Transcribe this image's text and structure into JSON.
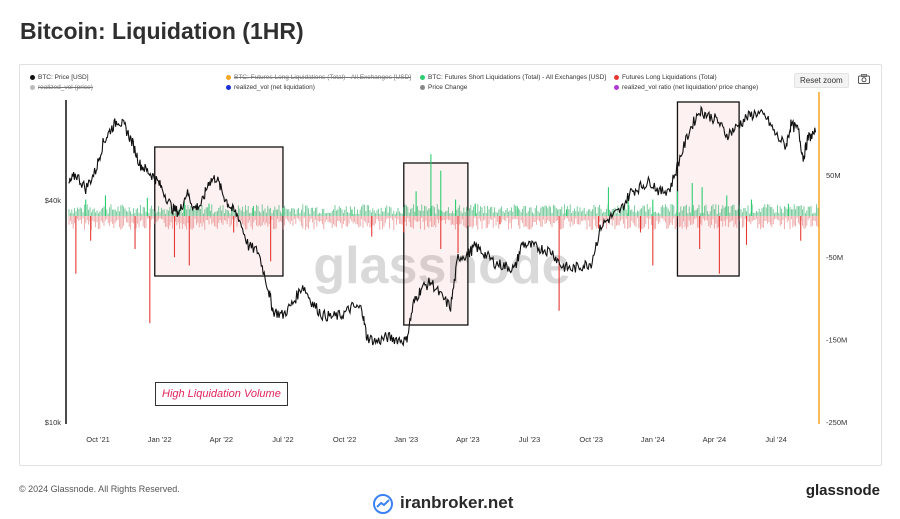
{
  "title": "Bitcoin: Liquidation (1HR)",
  "legend": [
    {
      "label": "BTC: Price [USD]",
      "color": "#111111",
      "strike": false
    },
    {
      "label": "BTC: Futures Long Liquidations (Total) - All Exchanges [USD]",
      "color": "#f5a623",
      "strike": true
    },
    {
      "label": "BTC: Futures Short Liquidations (Total) - All Exchanges [USD]",
      "color": "#2ecc71",
      "strike": false
    },
    {
      "label": "Futures Long Liquidations (Total)",
      "color": "#e53935",
      "strike": false
    },
    {
      "label": "realized_vol (price)",
      "color": "#999999",
      "strike": true
    },
    {
      "label": "realized_vol (net liquidation)",
      "color": "#1a2fd6",
      "strike": false
    },
    {
      "label": "Price Change",
      "color": "#888888",
      "strike": false
    },
    {
      "label": "realized_vol ratio (net liquidation/ price change)",
      "color": "#b03ad6",
      "strike": false
    }
  ],
  "reset_zoom": "Reset zoom",
  "annotation": "High Liquidation Volume",
  "watermark": "glassnode",
  "footer": {
    "copyright": "© 2024 Glassnode. All Rights Reserved.",
    "brand": "glassnode",
    "broker": "iranbroker.net"
  },
  "chart_data": {
    "type": "line",
    "left_axis": {
      "scale": "log",
      "ticks": [
        "$10k",
        "$40k"
      ]
    },
    "right_axis": {
      "ticks": [
        "50M",
        "-50M",
        "-150M",
        "-250M"
      ],
      "range": [
        -250,
        100
      ],
      "unit": "M"
    },
    "x_ticks": [
      "Oct '21",
      "Jan '22",
      "Apr '22",
      "Jul '22",
      "Oct '22",
      "Jan '23",
      "Apr '23",
      "Jul '23",
      "Oct '23",
      "Jan '24",
      "Apr '24",
      "Jul '24"
    ],
    "x_range": [
      2021.62,
      2024.67
    ],
    "price_series": {
      "name": "BTC: Price [USD]",
      "points": [
        [
          2021.63,
          44000
        ],
        [
          2021.66,
          47000
        ],
        [
          2021.7,
          43000
        ],
        [
          2021.74,
          48000
        ],
        [
          2021.77,
          57000
        ],
        [
          2021.8,
          62000
        ],
        [
          2021.83,
          66000
        ],
        [
          2021.86,
          63000
        ],
        [
          2021.89,
          57000
        ],
        [
          2021.92,
          50000
        ],
        [
          2021.95,
          48000
        ],
        [
          2021.98,
          46000
        ],
        [
          2022.01,
          43000
        ],
        [
          2022.05,
          38000
        ],
        [
          2022.08,
          37000
        ],
        [
          2022.11,
          42000
        ],
        [
          2022.14,
          38000
        ],
        [
          2022.17,
          39000
        ],
        [
          2022.2,
          45000
        ],
        [
          2022.23,
          46000
        ],
        [
          2022.26,
          41000
        ],
        [
          2022.29,
          38000
        ],
        [
          2022.32,
          36000
        ],
        [
          2022.36,
          30000
        ],
        [
          2022.4,
          29000
        ],
        [
          2022.44,
          23000
        ],
        [
          2022.46,
          20000
        ],
        [
          2022.5,
          19500
        ],
        [
          2022.54,
          21000
        ],
        [
          2022.58,
          23500
        ],
        [
          2022.62,
          21000
        ],
        [
          2022.66,
          19500
        ],
        [
          2022.7,
          19300
        ],
        [
          2022.74,
          19500
        ],
        [
          2022.78,
          20500
        ],
        [
          2022.82,
          20300
        ],
        [
          2022.84,
          17000
        ],
        [
          2022.88,
          16500
        ],
        [
          2022.92,
          17000
        ],
        [
          2022.96,
          16800
        ],
        [
          2023.0,
          16600
        ],
        [
          2023.03,
          21000
        ],
        [
          2023.06,
          23000
        ],
        [
          2023.1,
          24000
        ],
        [
          2023.14,
          22000
        ],
        [
          2023.18,
          20500
        ],
        [
          2023.21,
          28000
        ],
        [
          2023.25,
          28500
        ],
        [
          2023.28,
          30000
        ],
        [
          2023.32,
          28500
        ],
        [
          2023.36,
          27000
        ],
        [
          2023.4,
          26500
        ],
        [
          2023.44,
          26000
        ],
        [
          2023.47,
          30500
        ],
        [
          2023.51,
          30000
        ],
        [
          2023.55,
          29500
        ],
        [
          2023.59,
          29000
        ],
        [
          2023.63,
          26500
        ],
        [
          2023.67,
          26000
        ],
        [
          2023.71,
          26500
        ],
        [
          2023.75,
          27000
        ],
        [
          2023.79,
          34000
        ],
        [
          2023.83,
          36000
        ],
        [
          2023.87,
          37500
        ],
        [
          2023.91,
          42000
        ],
        [
          2023.95,
          43500
        ],
        [
          2023.99,
          45000
        ],
        [
          2024.03,
          42000
        ],
        [
          2024.07,
          43000
        ],
        [
          2024.11,
          52000
        ],
        [
          2024.15,
          62000
        ],
        [
          2024.19,
          70000
        ],
        [
          2024.22,
          68000
        ],
        [
          2024.26,
          66000
        ],
        [
          2024.3,
          60000
        ],
        [
          2024.34,
          63000
        ],
        [
          2024.38,
          67000
        ],
        [
          2024.42,
          69000
        ],
        [
          2024.46,
          67000
        ],
        [
          2024.5,
          60000
        ],
        [
          2024.54,
          56000
        ],
        [
          2024.56,
          64000
        ],
        [
          2024.59,
          62000
        ],
        [
          2024.61,
          52000
        ],
        [
          2024.63,
          59000
        ],
        [
          2024.66,
          61000
        ]
      ]
    },
    "liquidation_spikes": {
      "short_positive_M": [
        [
          2021.7,
          20
        ],
        [
          2021.78,
          25
        ],
        [
          2021.95,
          22
        ],
        [
          2022.1,
          18
        ],
        [
          2022.2,
          15
        ],
        [
          2022.38,
          12
        ],
        [
          2022.5,
          10
        ],
        [
          2022.78,
          8
        ],
        [
          2023.04,
          30
        ],
        [
          2023.1,
          75
        ],
        [
          2023.14,
          55
        ],
        [
          2023.2,
          20
        ],
        [
          2023.28,
          15
        ],
        [
          2023.45,
          12
        ],
        [
          2023.65,
          8
        ],
        [
          2023.82,
          35
        ],
        [
          2023.9,
          25
        ],
        [
          2024.0,
          20
        ],
        [
          2024.1,
          30
        ],
        [
          2024.16,
          40
        ],
        [
          2024.2,
          35
        ],
        [
          2024.3,
          25
        ],
        [
          2024.4,
          20
        ],
        [
          2024.55,
          15
        ]
      ],
      "long_negative_M": [
        [
          2021.66,
          -70
        ],
        [
          2021.72,
          -30
        ],
        [
          2021.9,
          -40
        ],
        [
          2021.96,
          -130
        ],
        [
          2022.06,
          -50
        ],
        [
          2022.12,
          -60
        ],
        [
          2022.3,
          -20
        ],
        [
          2022.45,
          -55
        ],
        [
          2022.86,
          -25
        ],
        [
          2022.99,
          -20
        ],
        [
          2023.14,
          -40
        ],
        [
          2023.21,
          -45
        ],
        [
          2023.38,
          -10
        ],
        [
          2023.62,
          -115
        ],
        [
          2023.78,
          -15
        ],
        [
          2023.95,
          -20
        ],
        [
          2024.0,
          -60
        ],
        [
          2024.19,
          -40
        ],
        [
          2024.27,
          -70
        ],
        [
          2024.38,
          -35
        ],
        [
          2024.6,
          -30
        ]
      ]
    },
    "highlight_boxes": [
      {
        "x0": 2021.98,
        "x1": 2022.5,
        "note": "high liquidation"
      },
      {
        "x0": 2022.99,
        "x1": 2023.25,
        "note": "high liquidation"
      },
      {
        "x0": 2024.1,
        "x1": 2024.35,
        "note": "high liquidation"
      }
    ]
  }
}
